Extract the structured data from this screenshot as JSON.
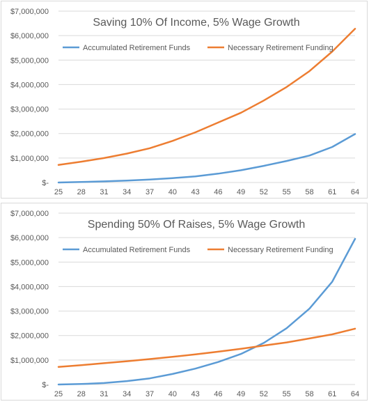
{
  "chart_data": [
    {
      "type": "line",
      "title": "Saving 10% Of Income, 5% Wage Growth",
      "xlabel": "",
      "ylabel": "",
      "x_ticks": [
        "25",
        "28",
        "31",
        "34",
        "37",
        "40",
        "43",
        "46",
        "49",
        "52",
        "55",
        "58",
        "61",
        "64"
      ],
      "y_ticks": [
        "$-",
        "$1,000,000",
        "$2,000,000",
        "$3,000,000",
        "$4,000,000",
        "$5,000,000",
        "$6,000,000",
        "$7,000,000"
      ],
      "xlim": [
        25,
        64
      ],
      "ylim": [
        0,
        7000000
      ],
      "grid": true,
      "legend": "top",
      "series": [
        {
          "name": "Accumulated Retirement Funds",
          "color": "#5b9bd5",
          "points": [
            [
              25,
              0
            ],
            [
              28,
              20000
            ],
            [
              31,
              45000
            ],
            [
              34,
              80000
            ],
            [
              37,
              120000
            ],
            [
              40,
              180000
            ],
            [
              43,
              250000
            ],
            [
              46,
              360000
            ],
            [
              49,
              500000
            ],
            [
              52,
              680000
            ],
            [
              55,
              880000
            ],
            [
              58,
              1100000
            ],
            [
              61,
              1450000
            ],
            [
              64,
              1980000
            ]
          ]
        },
        {
          "name": "Necessary Retirement Funding",
          "color": "#ed7d31",
          "points": [
            [
              25,
              720000
            ],
            [
              28,
              850000
            ],
            [
              31,
              1000000
            ],
            [
              34,
              1180000
            ],
            [
              37,
              1400000
            ],
            [
              40,
              1700000
            ],
            [
              43,
              2050000
            ],
            [
              46,
              2450000
            ],
            [
              49,
              2850000
            ],
            [
              52,
              3350000
            ],
            [
              55,
              3900000
            ],
            [
              58,
              4550000
            ],
            [
              61,
              5350000
            ],
            [
              64,
              6280000
            ]
          ]
        }
      ]
    },
    {
      "type": "line",
      "title": "Spending 50% Of Raises, 5% Wage Growth",
      "xlabel": "",
      "ylabel": "",
      "x_ticks": [
        "25",
        "28",
        "31",
        "34",
        "37",
        "40",
        "43",
        "46",
        "49",
        "52",
        "55",
        "58",
        "61",
        "64"
      ],
      "y_ticks": [
        "$-",
        "$1,000,000",
        "$2,000,000",
        "$3,000,000",
        "$4,000,000",
        "$5,000,000",
        "$6,000,000",
        "$7,000,000"
      ],
      "xlim": [
        25,
        64
      ],
      "ylim": [
        0,
        7000000
      ],
      "grid": true,
      "legend": "top",
      "series": [
        {
          "name": "Accumulated Retirement Funds",
          "color": "#5b9bd5",
          "points": [
            [
              25,
              0
            ],
            [
              28,
              20000
            ],
            [
              31,
              60000
            ],
            [
              34,
              140000
            ],
            [
              37,
              250000
            ],
            [
              40,
              430000
            ],
            [
              43,
              650000
            ],
            [
              46,
              920000
            ],
            [
              49,
              1250000
            ],
            [
              52,
              1700000
            ],
            [
              55,
              2300000
            ],
            [
              58,
              3100000
            ],
            [
              61,
              4200000
            ],
            [
              64,
              5950000
            ]
          ]
        },
        {
          "name": "Necessary Retirement Funding",
          "color": "#ed7d31",
          "points": [
            [
              25,
              720000
            ],
            [
              28,
              790000
            ],
            [
              31,
              870000
            ],
            [
              34,
              950000
            ],
            [
              37,
              1040000
            ],
            [
              40,
              1130000
            ],
            [
              43,
              1230000
            ],
            [
              46,
              1340000
            ],
            [
              49,
              1460000
            ],
            [
              52,
              1590000
            ],
            [
              55,
              1720000
            ],
            [
              58,
              1880000
            ],
            [
              61,
              2050000
            ],
            [
              64,
              2280000
            ]
          ]
        }
      ]
    }
  ]
}
